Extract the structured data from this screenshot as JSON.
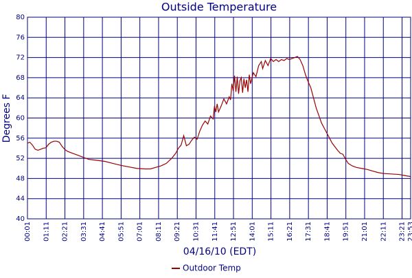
{
  "chart_data": {
    "type": "line",
    "title": "Outside Temperature",
    "x_label": "04/16/10 (EDT)",
    "y_label": "Degrees F",
    "x": [
      1,
      10,
      20,
      30,
      40,
      50,
      60,
      70,
      80,
      90,
      100,
      110,
      120,
      130,
      140,
      150,
      170,
      190,
      210,
      230,
      260,
      290,
      320,
      350,
      380,
      410,
      440,
      460,
      480,
      500,
      520,
      540,
      555,
      565,
      575,
      585,
      595,
      605,
      615,
      625,
      635,
      645,
      655,
      665,
      675,
      685,
      695,
      700,
      705,
      710,
      715,
      725,
      735,
      745,
      755,
      760,
      765,
      770,
      775,
      780,
      785,
      790,
      795,
      800,
      805,
      810,
      815,
      820,
      825,
      830,
      835,
      845,
      855,
      865,
      875,
      880,
      890,
      900,
      910,
      920,
      930,
      940,
      950,
      960,
      970,
      980,
      990,
      1000,
      1010,
      1020,
      1030,
      1040,
      1050,
      1060,
      1070,
      1080,
      1090,
      1100,
      1110,
      1120,
      1130,
      1140,
      1150,
      1160,
      1170,
      1180,
      1190,
      1200,
      1215,
      1230,
      1250,
      1270,
      1290,
      1310,
      1330,
      1360,
      1390,
      1410,
      1420,
      1433
    ],
    "series": [
      {
        "name": "Outdoor Temp",
        "color": "#990000",
        "values": [
          55,
          55.2,
          54.6,
          53.8,
          53.6,
          53.8,
          54,
          54.1,
          54.8,
          55.2,
          55.4,
          55.4,
          55.2,
          54.4,
          53.8,
          53.4,
          53,
          52.6,
          52.2,
          51.8,
          51.6,
          51.4,
          51,
          50.6,
          50.3,
          50,
          49.9,
          49.9,
          50.2,
          50.5,
          51,
          52,
          53,
          54,
          54.6,
          56.5,
          54.5,
          54.8,
          55.6,
          56.2,
          55.8,
          57.4,
          58.6,
          59.4,
          58.8,
          60.4,
          59.8,
          62.4,
          61.2,
          62.8,
          61.2,
          62.4,
          63.8,
          62.8,
          64.2,
          63.6,
          66.8,
          65.4,
          68.4,
          65.2,
          68.2,
          64.8,
          67.4,
          68,
          65,
          67.8,
          66,
          67.6,
          65.2,
          68.6,
          66.8,
          69,
          68.2,
          70.4,
          71.2,
          69.8,
          71.4,
          70.4,
          71.8,
          71.2,
          71.6,
          71.2,
          71.6,
          71.4,
          71.8,
          71.6,
          71.8,
          72,
          72.2,
          71.6,
          70.4,
          68.6,
          67.2,
          66,
          64,
          62,
          60.5,
          59,
          58,
          57,
          56,
          55,
          54.3,
          53.6,
          53,
          52.8,
          51.8,
          51,
          50.5,
          50.2,
          50,
          49.8,
          49.5,
          49.2,
          49,
          48.9,
          48.8,
          48.6,
          48.5,
          48.4
        ]
      }
    ],
    "xlim": [
      1,
      1433
    ],
    "xticks": [
      {
        "value": 1,
        "label": "00:01"
      },
      {
        "value": 71,
        "label": "01:11"
      },
      {
        "value": 141,
        "label": "02:21"
      },
      {
        "value": 211,
        "label": "03:31"
      },
      {
        "value": 281,
        "label": "04:41"
      },
      {
        "value": 351,
        "label": "05:51"
      },
      {
        "value": 421,
        "label": "07:01"
      },
      {
        "value": 491,
        "label": "08:11"
      },
      {
        "value": 561,
        "label": "09:21"
      },
      {
        "value": 631,
        "label": "10:31"
      },
      {
        "value": 701,
        "label": "11:41"
      },
      {
        "value": 771,
        "label": "12:51"
      },
      {
        "value": 841,
        "label": "14:01"
      },
      {
        "value": 911,
        "label": "15:11"
      },
      {
        "value": 981,
        "label": "16:21"
      },
      {
        "value": 1051,
        "label": "17:31"
      },
      {
        "value": 1121,
        "label": "18:41"
      },
      {
        "value": 1191,
        "label": "19:51"
      },
      {
        "value": 1261,
        "label": "21:01"
      },
      {
        "value": 1331,
        "label": "22:11"
      },
      {
        "value": 1401,
        "label": "23:21"
      },
      {
        "value": 1433,
        "label": "23:53"
      }
    ],
    "ylim": [
      40,
      80
    ],
    "yticks": [
      40,
      44,
      48,
      52,
      56,
      60,
      64,
      68,
      72,
      76,
      80
    ],
    "grid": true
  }
}
